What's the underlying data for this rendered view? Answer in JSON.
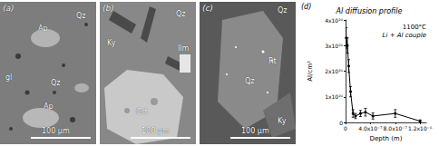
{
  "figure": {
    "panels": [
      {
        "label": "(a)",
        "labels": [
          "Qz",
          "Ap",
          "gl",
          "Qz",
          "Ap"
        ],
        "scale_bar": "100 μm"
      },
      {
        "label": "(b)",
        "labels": [
          "Ky",
          "Qz",
          "Ilm",
          "Grt"
        ],
        "scale_bar": "100 μm"
      },
      {
        "label": "(c)",
        "labels": [
          "Qz",
          "Rt",
          "Qz",
          "Ky"
        ],
        "scale_bar": "100 μm"
      }
    ]
  },
  "chart_data": {
    "type": "line",
    "title": "Al diffusion profile",
    "annotations": [
      "(d)",
      "1100°C",
      "Li + Al couple"
    ],
    "xlabel": "Depth (m)",
    "ylabel": "Al/cm³",
    "x": [
      1e-08,
      3e-08,
      5e-08,
      8e-08,
      1.2e-07,
      1.6e-07,
      2.4e-07,
      3.2e-07,
      4.4e-07,
      8e-07,
      1.2e-06
    ],
    "series": [
      {
        "name": "Al",
        "color": "#000000",
        "marker": "circle",
        "values": [
          3.3e+20,
          3e+20,
          2.2e+20,
          1.2e+20,
          3.5e+19,
          2.5e+19,
          3.5e+19,
          4e+19,
          2.5e+19,
          3.5e+19,
          5e+18
        ],
        "errors": [
          4e+19,
          3e+19,
          2.5e+19,
          2e+19,
          1.5e+19,
          1e+19,
          1.2e+19,
          1.5e+19,
          1.2e+19,
          1.5e+19,
          5e+18
        ]
      }
    ],
    "xlim": [
      0,
      1.3e-06
    ],
    "xticks": [
      0,
      {
        "value": 4e-07,
        "label": "4.0x10⁻⁷"
      },
      {
        "value": 8e-07,
        "label": "8.0x10⁻⁷"
      },
      {
        "value": 1.2e-06,
        "label": "1.2x10⁻⁶"
      }
    ],
    "ylim": [
      0,
      4e+20
    ],
    "yticks": [
      0,
      {
        "value": 1e+20,
        "label": "1x10²⁰"
      },
      {
        "value": 2e+20,
        "label": "2x10²⁰"
      },
      {
        "value": 3e+20,
        "label": "3x10²⁰"
      },
      {
        "value": 4e+20,
        "label": "4x10²⁰"
      }
    ],
    "grid": false
  }
}
